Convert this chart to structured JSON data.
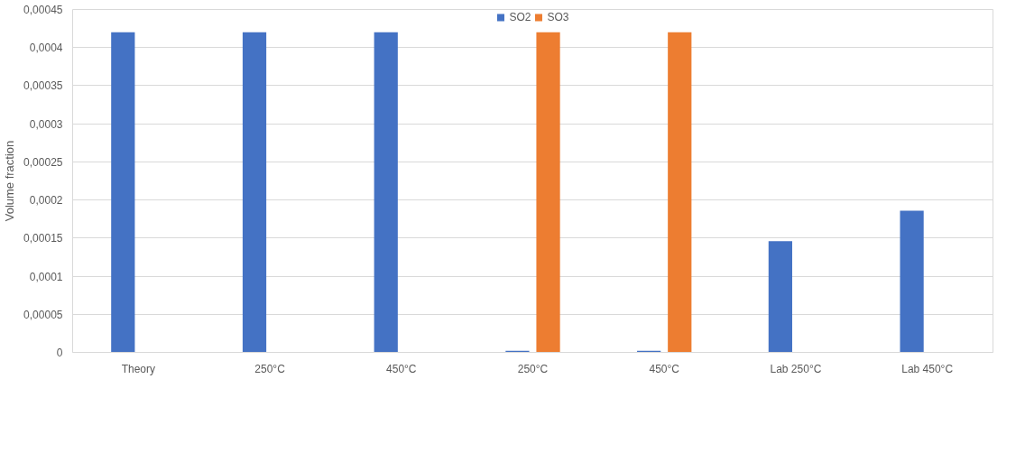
{
  "chart_data": {
    "type": "bar",
    "ylabel": "Volume fraction",
    "categories": [
      "Theory",
      "250°C",
      "450°C",
      "250°C",
      "450°C",
      "Lab 250°C",
      "Lab 450°C"
    ],
    "series": [
      {
        "name": "SO2",
        "color": "#4472c4",
        "values": [
          0.00042,
          0.00042,
          0.00042,
          2e-06,
          2e-06,
          0.000146,
          0.000186
        ]
      },
      {
        "name": "SO3",
        "color": "#ed7d31",
        "values": [
          0,
          0,
          0,
          0.00042,
          0.00042,
          0,
          0
        ]
      }
    ],
    "ylim": [
      0,
      0.00045
    ],
    "yticks": [
      {
        "value": 0,
        "label": "0"
      },
      {
        "value": 5e-05,
        "label": "0,00005"
      },
      {
        "value": 0.0001,
        "label": "0,0001"
      },
      {
        "value": 0.00015,
        "label": "0,00015"
      },
      {
        "value": 0.0002,
        "label": "0,0002"
      },
      {
        "value": 0.00025,
        "label": "0,00025"
      },
      {
        "value": 0.0003,
        "label": "0,0003"
      },
      {
        "value": 0.00035,
        "label": "0,00035"
      },
      {
        "value": 0.0004,
        "label": "0,0004"
      },
      {
        "value": 0.00045,
        "label": "0,00045"
      }
    ],
    "grid": "y",
    "legend": "top"
  }
}
